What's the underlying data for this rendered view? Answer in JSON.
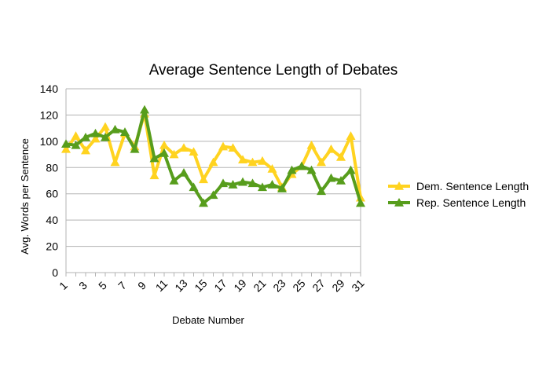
{
  "chart_data": {
    "type": "line",
    "title": "Average Sentence Length of Debates",
    "xlabel": "Debate Number",
    "ylabel": "Avg. Words per Sentence",
    "ylim": [
      0,
      140
    ],
    "yticks": [
      0,
      20,
      40,
      60,
      80,
      100,
      120,
      140
    ],
    "x": [
      1,
      2,
      3,
      4,
      5,
      6,
      7,
      8,
      9,
      10,
      11,
      12,
      13,
      14,
      15,
      16,
      17,
      18,
      19,
      20,
      21,
      22,
      23,
      24,
      25,
      26,
      27,
      28,
      29,
      30,
      31
    ],
    "xtick_labels": [
      "1",
      "3",
      "5",
      "7",
      "9",
      "11",
      "13",
      "15",
      "17",
      "19",
      "21",
      "23",
      "25",
      "27",
      "29",
      "31"
    ],
    "grid": true,
    "legend_position": "right",
    "series": [
      {
        "name": "Dem. Sentence Length",
        "color": "#ffd320",
        "values": [
          94,
          104,
          93,
          102,
          111,
          84,
          106,
          96,
          121,
          74,
          97,
          90,
          95,
          92,
          71,
          84,
          96,
          95,
          86,
          84,
          85,
          79,
          65,
          75,
          81,
          97,
          84,
          94,
          88,
          104,
          57
        ]
      },
      {
        "name": "Rep. Sentence Length",
        "color": "#579d1c",
        "values": [
          98,
          97,
          103,
          106,
          103,
          109,
          107,
          94,
          124,
          87,
          91,
          70,
          76,
          65,
          53,
          59,
          68,
          67,
          69,
          68,
          65,
          67,
          64,
          78,
          81,
          78,
          62,
          72,
          70,
          78,
          53
        ]
      }
    ]
  }
}
